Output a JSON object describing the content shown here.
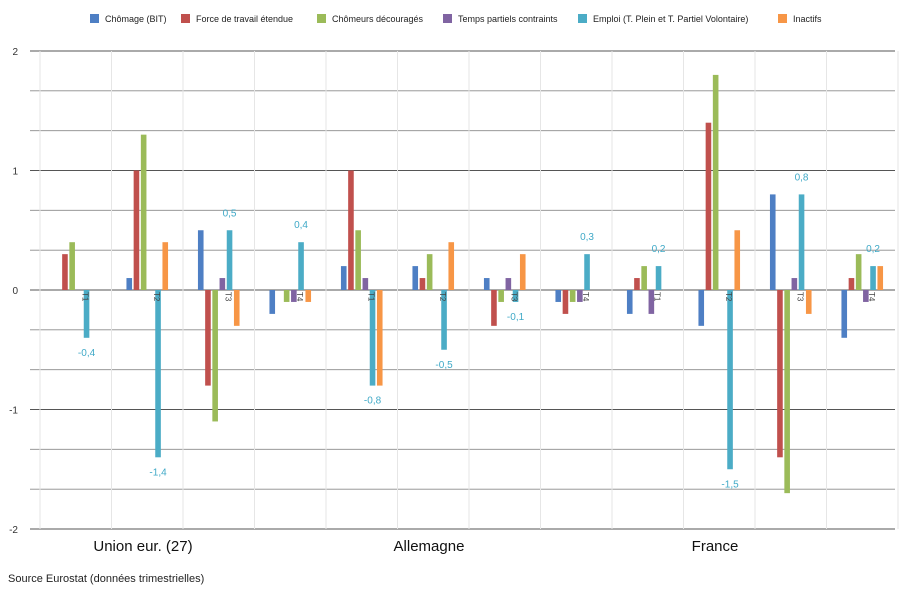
{
  "chart_data": {
    "type": "bar",
    "ylim": [
      -2,
      2
    ],
    "yticks": [
      -2,
      -1,
      0,
      1,
      2
    ],
    "grid": true,
    "legend_position": "top",
    "groups": [
      "Union eur. (27)",
      "Allemagne",
      "France"
    ],
    "categories": [
      "T1",
      "T2",
      "T3",
      "T4",
      "T1",
      "T2",
      "T3",
      "T4",
      "T1",
      "T2",
      "T3",
      "T4"
    ],
    "series": [
      {
        "name": "Chômage (BIT)",
        "color": "#4e7fc4",
        "values": [
          0,
          0.1,
          0.5,
          -0.2,
          0.2,
          0.2,
          0.1,
          -0.1,
          -0.2,
          -0.3,
          0.8,
          -0.4
        ]
      },
      {
        "name": "Force de travail étendue",
        "color": "#c0504d",
        "values": [
          0.3,
          1.0,
          -0.8,
          0,
          1.0,
          0.1,
          -0.3,
          -0.2,
          0.1,
          1.4,
          -1.4,
          0.1
        ]
      },
      {
        "name": "Chômeurs découragés",
        "color": "#9bbb59",
        "values": [
          0.4,
          1.3,
          -1.1,
          -0.1,
          0.5,
          0.3,
          -0.1,
          -0.1,
          0.2,
          1.8,
          -1.7,
          0.3
        ]
      },
      {
        "name": "Temps partiels contraints",
        "color": "#8064a2",
        "values": [
          0,
          0,
          0.1,
          -0.1,
          0.1,
          0,
          0.1,
          -0.1,
          -0.2,
          0,
          0.1,
          -0.1
        ]
      },
      {
        "name": "Emploi (T. Plein et T. Partiel Volontaire)",
        "color": "#4bacc6",
        "values": [
          -0.4,
          -1.4,
          0.5,
          0.4,
          -0.8,
          -0.5,
          -0.1,
          0.3,
          0.2,
          -1.5,
          0.8,
          0.2
        ]
      },
      {
        "name": "Inactifs",
        "color": "#f79646",
        "values": [
          0,
          0.4,
          -0.3,
          -0.1,
          -0.8,
          0.4,
          0.3,
          0,
          0,
          0.5,
          -0.2,
          0.2
        ]
      }
    ],
    "data_labels": [
      {
        "category_index": 0,
        "text": "-0,4"
      },
      {
        "category_index": 1,
        "text": "-1,4"
      },
      {
        "category_index": 2,
        "text": "0,5"
      },
      {
        "category_index": 3,
        "text": "0,4"
      },
      {
        "category_index": 4,
        "text": "-0,8"
      },
      {
        "category_index": 5,
        "text": "-0,5"
      },
      {
        "category_index": 6,
        "text": "-0,1"
      },
      {
        "category_index": 7,
        "text": "0,3"
      },
      {
        "category_index": 8,
        "text": "0,2"
      },
      {
        "category_index": 9,
        "text": "-1,5"
      },
      {
        "category_index": 10,
        "text": "0,8"
      },
      {
        "category_index": 11,
        "text": "0,2"
      }
    ],
    "source": "Source Eurostat (données trimestrielles)"
  }
}
